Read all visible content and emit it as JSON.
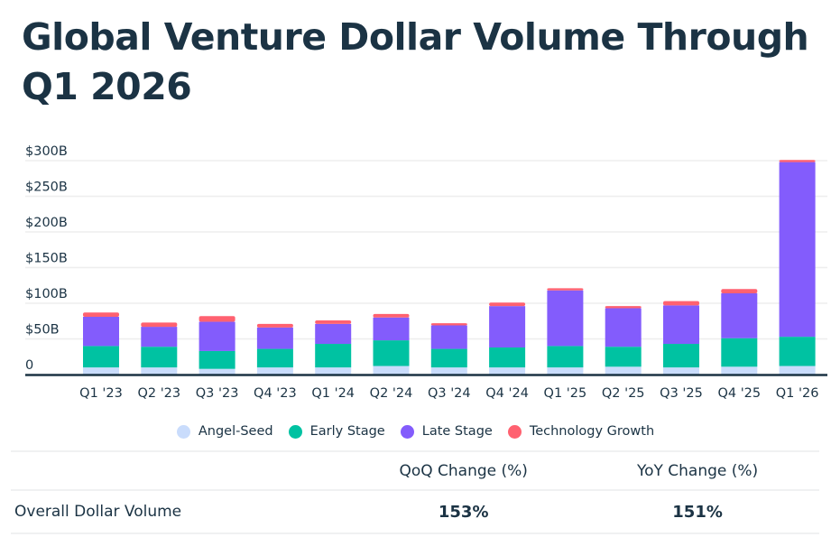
{
  "title": "Global Venture Dollar Volume Through Q1 2026",
  "chart_data": {
    "type": "bar",
    "stacked": true,
    "title": "Global Venture Dollar Volume Through Q1 2026",
    "xlabel": "",
    "ylabel": "",
    "ylim": [
      0,
      300
    ],
    "y_ticks": [
      {
        "value": 0,
        "label": "0"
      },
      {
        "value": 50,
        "label": "$50B"
      },
      {
        "value": 100,
        "label": "$100B"
      },
      {
        "value": 150,
        "label": "$150B"
      },
      {
        "value": 200,
        "label": "$200B"
      },
      {
        "value": 250,
        "label": "$250B"
      },
      {
        "value": 300,
        "label": "$300B"
      }
    ],
    "grid": true,
    "legend_position": "bottom-center",
    "categories": [
      "Q1 '23",
      "Q2 '23",
      "Q3 '23",
      "Q4 '23",
      "Q1 '24",
      "Q2 '24",
      "Q3 '24",
      "Q4 '24",
      "Q1 '25",
      "Q2 '25",
      "Q3 '25",
      "Q4 '25",
      "Q1 '26"
    ],
    "series": [
      {
        "name": "Angel-Seed",
        "color": "#c9dcfc",
        "values": [
          10,
          10,
          8,
          10,
          10,
          12,
          10,
          10,
          10,
          11,
          10,
          11,
          12
        ]
      },
      {
        "name": "Early Stage",
        "color": "#00c2a2",
        "values": [
          30,
          29,
          25,
          26,
          33,
          36,
          26,
          28,
          30,
          28,
          33,
          40,
          41
        ]
      },
      {
        "name": "Late Stage",
        "color": "#835cfc",
        "values": [
          41,
          28,
          41,
          30,
          28,
          32,
          33,
          58,
          78,
          54,
          54,
          63,
          245
        ]
      },
      {
        "name": "Technology Growth",
        "color": "#ff6170",
        "values": [
          6,
          6,
          8,
          5,
          5,
          5,
          3,
          5,
          3,
          3,
          6,
          6,
          3
        ]
      }
    ]
  },
  "summary_table": {
    "headers": [
      "",
      "QoQ Change (%)",
      "YoY Change (%)"
    ],
    "rows": [
      {
        "label": "Overall Dollar Volume",
        "qoq": "153%",
        "yoy": "151%"
      }
    ]
  },
  "colors": {
    "text": "#1b3344",
    "axis": "#1b3344",
    "grid": "#eeeeee"
  }
}
